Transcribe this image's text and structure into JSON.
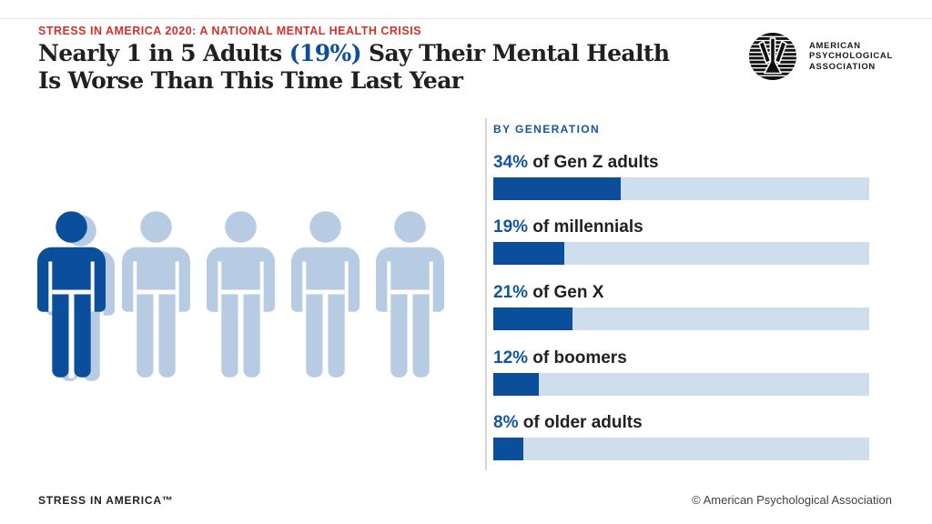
{
  "colors": {
    "accent_red": "#d3302c",
    "dark_blue": "#0b4e9c",
    "light_blue": "#b7cbe2",
    "track_blue": "#cfdeed",
    "text_dark": "#231f20",
    "divider_gray": "#d8d7d3",
    "label_blue": "#1255a5"
  },
  "header": {
    "eyebrow": "STRESS IN AMERICA 2020: A NATIONAL MENTAL HEALTH CRISIS",
    "title": {
      "pre": "Nearly 1 in 5 Adults ",
      "highlight": "(19%)",
      "post": " Say Their Mental Health",
      "line2": "Is Worse Than This Time Last Year"
    }
  },
  "logo": {
    "icon": "psi-circle-icon",
    "org_lines": [
      "AMERICAN",
      "PSYCHOLOGICAL",
      "ASSOCIATION"
    ]
  },
  "chart": {
    "section_label": "BY GENERATION",
    "rows": [
      {
        "pct": "34%",
        "label": " of Gen Z adults",
        "value": 34
      },
      {
        "pct": "19%",
        "label": " of millennials",
        "value": 19
      },
      {
        "pct": "21%",
        "label": " of Gen X",
        "value": 21
      },
      {
        "pct": "12%",
        "label": " of boomers",
        "value": 12
      },
      {
        "pct": "8%",
        "label": " of older adults",
        "value": 8
      }
    ]
  },
  "chart_data": {
    "type": "bar",
    "orientation": "horizontal",
    "title": "BY GENERATION",
    "categories": [
      "Gen Z adults",
      "millennials",
      "Gen X",
      "boomers",
      "older adults"
    ],
    "values": [
      34,
      19,
      21,
      12,
      8
    ],
    "unit": "percent",
    "xlim": [
      0,
      100
    ],
    "grid": false,
    "legend": false,
    "annotations": [
      "34% of Gen Z adults",
      "19% of millennials",
      "21% of Gen X",
      "12% of boomers",
      "8% of older adults"
    ],
    "pictograph": {
      "type": "icon-array",
      "icon": "person",
      "total": 5,
      "highlighted": 1,
      "represents": "Nearly 1 in 5 adults (19%)"
    }
  },
  "footer": {
    "brand": "STRESS IN AMERICA™",
    "copyright": "© American Psychological Association"
  }
}
